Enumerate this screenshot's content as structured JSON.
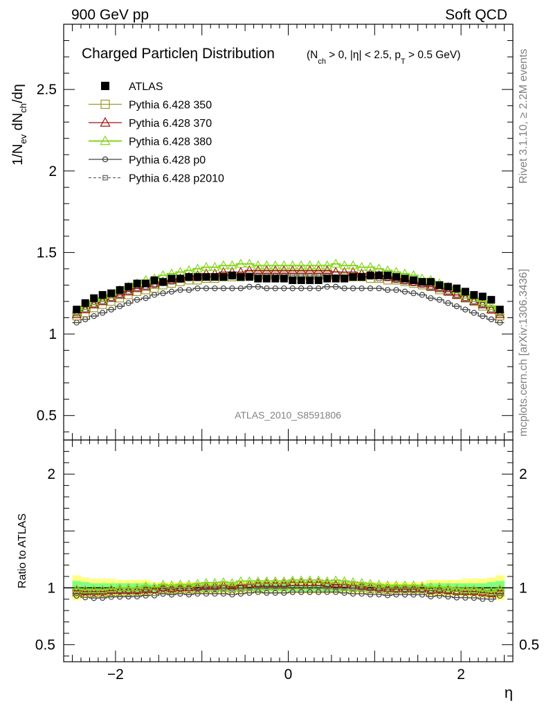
{
  "header": {
    "left": "900 GeV pp",
    "right": "Soft QCD"
  },
  "side_labels": {
    "rivet": "Rivet 3.1.10, ≥ 2.2M events",
    "mcplots": "mcplots.cern.ch [arXiv:1306.3436]"
  },
  "analysis_id": "ATLAS_2010_S8591806",
  "title": {
    "main_a": "Charged Particle",
    "eta": "η",
    "main_b": " Distribution",
    "cuts": "(N_ch > 0, |η| < 2.5, p_T > 0.5 GeV)"
  },
  "colors": {
    "atlas": "#000000",
    "p350": "#9a9a2b",
    "p370": "#a01010",
    "p380": "#86d61c",
    "p0": "#404040",
    "p2010": "#606060",
    "band_stat": "#80ff80",
    "band_syst": "#ffff80"
  },
  "chart_data": [
    {
      "type": "scatter",
      "panel": "main",
      "ylabel": "1/N_ev dN_ch/dη",
      "xlim": [
        -2.6,
        2.6
      ],
      "ylim": [
        0.35,
        2.9
      ],
      "yticks": [
        0.5,
        1,
        1.5,
        2,
        2.5
      ],
      "ytick_labels": [
        "0.5",
        "1",
        "1.5",
        "2",
        "2.5"
      ],
      "x": [
        -2.45,
        -2.35,
        -2.25,
        -2.15,
        -2.05,
        -1.95,
        -1.85,
        -1.75,
        -1.65,
        -1.55,
        -1.45,
        -1.35,
        -1.25,
        -1.15,
        -1.05,
        -0.95,
        -0.85,
        -0.75,
        -0.65,
        -0.55,
        -0.45,
        -0.35,
        -0.25,
        -0.15,
        -0.05,
        0.05,
        0.15,
        0.25,
        0.35,
        0.45,
        0.55,
        0.65,
        0.75,
        0.85,
        0.95,
        1.05,
        1.15,
        1.25,
        1.35,
        1.45,
        1.55,
        1.65,
        1.75,
        1.85,
        1.95,
        2.05,
        2.15,
        2.25,
        2.35,
        2.45
      ],
      "legend_position": "top-left",
      "series": [
        {
          "name": "ATLAS",
          "marker": "filled-square",
          "values": [
            1.15,
            1.19,
            1.22,
            1.24,
            1.25,
            1.27,
            1.29,
            1.31,
            1.31,
            1.33,
            1.32,
            1.34,
            1.34,
            1.35,
            1.35,
            1.35,
            1.35,
            1.35,
            1.36,
            1.35,
            1.35,
            1.34,
            1.34,
            1.34,
            1.34,
            1.33,
            1.33,
            1.33,
            1.33,
            1.34,
            1.34,
            1.34,
            1.35,
            1.35,
            1.36,
            1.36,
            1.36,
            1.35,
            1.34,
            1.33,
            1.32,
            1.32,
            1.3,
            1.29,
            1.28,
            1.26,
            1.24,
            1.23,
            1.21,
            1.15
          ]
        },
        {
          "name": "Pythia 6.428 350",
          "marker": "open-square",
          "line": "solid",
          "values": [
            1.11,
            1.13,
            1.16,
            1.18,
            1.2,
            1.22,
            1.24,
            1.26,
            1.27,
            1.28,
            1.3,
            1.31,
            1.32,
            1.33,
            1.33,
            1.34,
            1.34,
            1.35,
            1.35,
            1.35,
            1.36,
            1.36,
            1.36,
            1.36,
            1.36,
            1.36,
            1.36,
            1.36,
            1.36,
            1.36,
            1.36,
            1.35,
            1.35,
            1.35,
            1.34,
            1.34,
            1.33,
            1.33,
            1.32,
            1.31,
            1.3,
            1.29,
            1.27,
            1.26,
            1.24,
            1.22,
            1.2,
            1.17,
            1.15,
            1.11
          ]
        },
        {
          "name": "Pythia 6.428 370",
          "marker": "open-triangle",
          "line": "solid",
          "values": [
            1.12,
            1.15,
            1.18,
            1.2,
            1.22,
            1.24,
            1.26,
            1.28,
            1.29,
            1.31,
            1.32,
            1.33,
            1.34,
            1.35,
            1.36,
            1.37,
            1.37,
            1.38,
            1.38,
            1.38,
            1.39,
            1.39,
            1.39,
            1.39,
            1.39,
            1.39,
            1.39,
            1.39,
            1.39,
            1.39,
            1.38,
            1.38,
            1.38,
            1.37,
            1.37,
            1.36,
            1.35,
            1.34,
            1.33,
            1.32,
            1.31,
            1.29,
            1.28,
            1.26,
            1.24,
            1.22,
            1.2,
            1.18,
            1.15,
            1.12
          ]
        },
        {
          "name": "Pythia 6.428 380",
          "marker": "open-triangle",
          "line": "solid",
          "values": [
            1.14,
            1.17,
            1.2,
            1.22,
            1.24,
            1.27,
            1.29,
            1.31,
            1.33,
            1.34,
            1.36,
            1.37,
            1.38,
            1.39,
            1.4,
            1.41,
            1.41,
            1.42,
            1.42,
            1.43,
            1.43,
            1.42,
            1.42,
            1.42,
            1.42,
            1.42,
            1.42,
            1.42,
            1.42,
            1.42,
            1.43,
            1.42,
            1.42,
            1.41,
            1.41,
            1.4,
            1.39,
            1.38,
            1.37,
            1.36,
            1.34,
            1.33,
            1.31,
            1.29,
            1.27,
            1.24,
            1.22,
            1.2,
            1.17,
            1.14
          ]
        },
        {
          "name": "Pythia 6.428 p0",
          "marker": "open-circle",
          "line": "solid",
          "values": [
            1.07,
            1.09,
            1.11,
            1.13,
            1.15,
            1.17,
            1.19,
            1.21,
            1.22,
            1.24,
            1.25,
            1.26,
            1.27,
            1.27,
            1.28,
            1.28,
            1.28,
            1.28,
            1.28,
            1.28,
            1.29,
            1.29,
            1.28,
            1.28,
            1.28,
            1.28,
            1.28,
            1.28,
            1.28,
            1.29,
            1.29,
            1.28,
            1.28,
            1.28,
            1.28,
            1.28,
            1.27,
            1.27,
            1.26,
            1.25,
            1.24,
            1.22,
            1.21,
            1.19,
            1.17,
            1.15,
            1.13,
            1.11,
            1.09,
            1.07
          ]
        },
        {
          "name": "Pythia 6.428 p2010",
          "marker": "open-square",
          "line": "dashed",
          "values": [
            1.13,
            1.15,
            1.18,
            1.2,
            1.22,
            1.24,
            1.26,
            1.28,
            1.29,
            1.3,
            1.31,
            1.32,
            1.33,
            1.34,
            1.34,
            1.35,
            1.35,
            1.35,
            1.35,
            1.35,
            1.36,
            1.36,
            1.36,
            1.36,
            1.36,
            1.36,
            1.36,
            1.36,
            1.36,
            1.36,
            1.35,
            1.35,
            1.35,
            1.35,
            1.35,
            1.34,
            1.34,
            1.33,
            1.32,
            1.31,
            1.3,
            1.29,
            1.28,
            1.26,
            1.24,
            1.22,
            1.2,
            1.18,
            1.15,
            1.13
          ]
        }
      ]
    },
    {
      "type": "scatter",
      "panel": "ratio",
      "ylabel": "Ratio to ATLAS",
      "xlabel": "η",
      "xlim": [
        -2.6,
        2.6
      ],
      "ylim": [
        0.35,
        2.3
      ],
      "yticks": [
        0.5,
        1,
        2
      ],
      "ytick_labels": [
        "0.5",
        "1",
        "2"
      ],
      "xticks": [
        -2,
        0,
        2
      ],
      "xtick_labels": [
        "−2",
        "0",
        "2"
      ],
      "reference_line": 1,
      "band_stat_halfwidth": [
        0.06,
        0.05,
        0.04,
        0.04,
        0.04,
        0.04,
        0.04,
        0.04,
        0.04,
        0.03,
        0.03,
        0.03,
        0.03,
        0.03,
        0.03,
        0.03,
        0.03,
        0.03,
        0.03,
        0.03,
        0.03,
        0.03,
        0.03,
        0.03,
        0.03,
        0.03,
        0.03,
        0.03,
        0.03,
        0.03,
        0.03,
        0.03,
        0.03,
        0.03,
        0.03,
        0.03,
        0.03,
        0.03,
        0.03,
        0.03,
        0.03,
        0.04,
        0.04,
        0.04,
        0.04,
        0.04,
        0.04,
        0.04,
        0.05,
        0.06
      ],
      "band_syst_halfwidth": [
        0.11,
        0.09,
        0.08,
        0.08,
        0.08,
        0.07,
        0.07,
        0.07,
        0.07,
        0.05,
        0.05,
        0.05,
        0.05,
        0.05,
        0.05,
        0.05,
        0.05,
        0.05,
        0.05,
        0.05,
        0.05,
        0.05,
        0.05,
        0.05,
        0.05,
        0.05,
        0.05,
        0.05,
        0.05,
        0.05,
        0.05,
        0.05,
        0.05,
        0.05,
        0.05,
        0.05,
        0.05,
        0.05,
        0.05,
        0.05,
        0.05,
        0.07,
        0.07,
        0.07,
        0.07,
        0.08,
        0.08,
        0.08,
        0.09,
        0.11
      ]
    }
  ]
}
